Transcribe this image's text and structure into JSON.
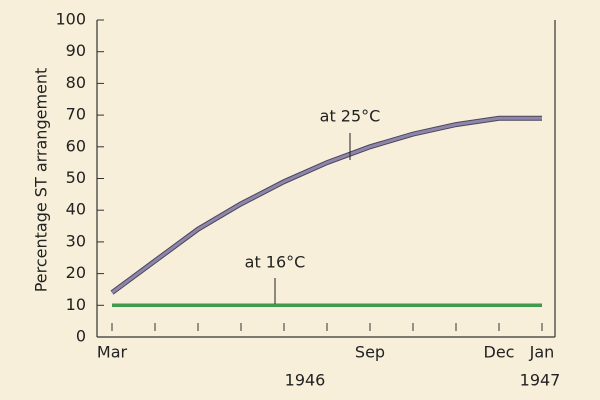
{
  "chart_data": {
    "type": "line",
    "y_label": "Percentage ST arrangement",
    "categories": [
      "Mar",
      null,
      null,
      null,
      null,
      null,
      "Sep",
      null,
      null,
      "Dec",
      "Jan"
    ],
    "years": [
      "1946",
      "1947"
    ],
    "series": [
      {
        "name": "at 25°C",
        "color": "#8e86a8",
        "values": [
          14,
          24,
          34,
          42,
          49,
          55,
          60,
          64,
          67,
          69,
          69
        ]
      },
      {
        "name": "at 16°C",
        "color": "#3f9a4c",
        "values": [
          10,
          10,
          10,
          10,
          10,
          10,
          10,
          10,
          10,
          10,
          10
        ]
      }
    ],
    "ylim": [
      0,
      100
    ],
    "yticks": [
      0,
      10,
      20,
      30,
      40,
      50,
      60,
      70,
      80,
      90,
      100
    ]
  }
}
